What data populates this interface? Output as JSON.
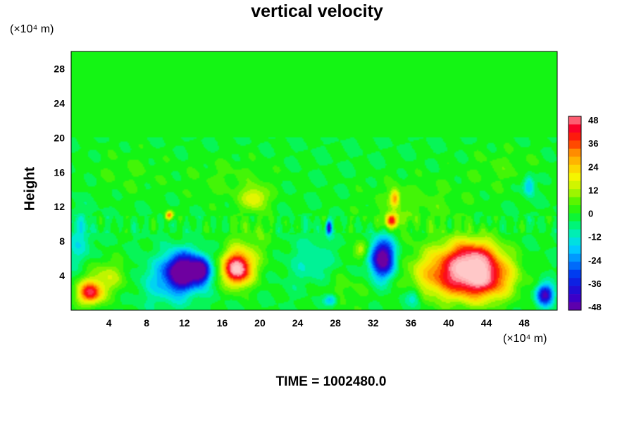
{
  "chart_data": {
    "type": "heatmap",
    "title": "vertical velocity",
    "ylabel": "Height",
    "xlabel": "",
    "x_unit": "(×10⁴ m)",
    "y_unit": "(×10⁴ m)",
    "xlim": [
      0,
      51.5
    ],
    "ylim": [
      0,
      30
    ],
    "x_ticks": [
      4,
      8,
      12,
      16,
      20,
      24,
      28,
      32,
      36,
      40,
      44,
      48
    ],
    "y_ticks": [
      4,
      8,
      12,
      16,
      20,
      24,
      28
    ],
    "colorbar": {
      "ticks": [
        48,
        36,
        24,
        12,
        0,
        -12,
        -24,
        -36,
        -48
      ],
      "range": [
        -48,
        48
      ],
      "levels": 24
    },
    "footer": "TIME = 1002480.0",
    "features": [
      {
        "x": 2.0,
        "y": 2.0,
        "sx": 1.3,
        "sy": 1.3,
        "value": 42
      },
      {
        "x": 3.8,
        "y": 3.8,
        "sx": 2.5,
        "sy": 2.0,
        "value": 14
      },
      {
        "x": 11.8,
        "y": 4.6,
        "sx": 1.6,
        "sy": 2.0,
        "value": -52
      },
      {
        "x": 13.8,
        "y": 4.6,
        "sx": 0.9,
        "sy": 1.5,
        "value": -44
      },
      {
        "x": 10.5,
        "y": 3.5,
        "sx": 3.2,
        "sy": 2.6,
        "value": -16
      },
      {
        "x": 17.6,
        "y": 4.8,
        "sx": 1.5,
        "sy": 1.9,
        "value": 56
      },
      {
        "x": 19.5,
        "y": 13.0,
        "sx": 1.3,
        "sy": 1.3,
        "value": 18
      },
      {
        "x": 19.0,
        "y": 7.5,
        "sx": 2.5,
        "sy": 3.5,
        "value": 8
      },
      {
        "x": 33.0,
        "y": 6.0,
        "sx": 1.3,
        "sy": 2.2,
        "value": -52
      },
      {
        "x": 34.0,
        "y": 10.4,
        "sx": 0.7,
        "sy": 0.8,
        "value": 40
      },
      {
        "x": 34.3,
        "y": 13.0,
        "sx": 0.5,
        "sy": 1.0,
        "value": 28
      },
      {
        "x": 39.5,
        "y": 4.2,
        "sx": 3.5,
        "sy": 2.8,
        "value": 30
      },
      {
        "x": 43.5,
        "y": 3.8,
        "sx": 3.2,
        "sy": 2.6,
        "value": 48
      },
      {
        "x": 42.5,
        "y": 6.5,
        "sx": 2.8,
        "sy": 2.0,
        "value": 28
      },
      {
        "x": 50.2,
        "y": 1.8,
        "sx": 0.9,
        "sy": 1.2,
        "value": -42
      },
      {
        "x": 36.5,
        "y": 12.0,
        "sx": 6.0,
        "sy": 3.5,
        "value": 6
      },
      {
        "x": 17.0,
        "y": 15.0,
        "sx": 5.0,
        "sy": 3.0,
        "value": 5
      },
      {
        "x": 6.0,
        "y": 16.0,
        "sx": 4.0,
        "sy": 3.0,
        "value": 4
      },
      {
        "x": 46.0,
        "y": 16.5,
        "sx": 4.0,
        "sy": 2.5,
        "value": 5
      },
      {
        "x": 28.5,
        "y": 2.2,
        "sx": 3.0,
        "sy": 2.5,
        "value": 6
      },
      {
        "x": 25.5,
        "y": 5.5,
        "sx": 2.5,
        "sy": 3.0,
        "value": -8
      },
      {
        "x": 27.5,
        "y": 1.2,
        "sx": 0.7,
        "sy": 0.7,
        "value": -22
      },
      {
        "x": 30.7,
        "y": 7.0,
        "sx": 0.8,
        "sy": 1.0,
        "value": 18
      },
      {
        "x": 36.3,
        "y": 1.5,
        "sx": 0.8,
        "sy": 1.2,
        "value": -14
      },
      {
        "x": 48.5,
        "y": 14.5,
        "sx": 0.6,
        "sy": 1.2,
        "value": -20
      },
      {
        "x": 27.3,
        "y": 9.6,
        "sx": 0.3,
        "sy": 0.8,
        "value": -40
      },
      {
        "x": 10.4,
        "y": 11.0,
        "sx": 0.4,
        "sy": 0.5,
        "value": 36
      },
      {
        "x": 0.8,
        "y": 8.0,
        "sx": 1.5,
        "sy": 3.5,
        "value": -10
      }
    ]
  }
}
